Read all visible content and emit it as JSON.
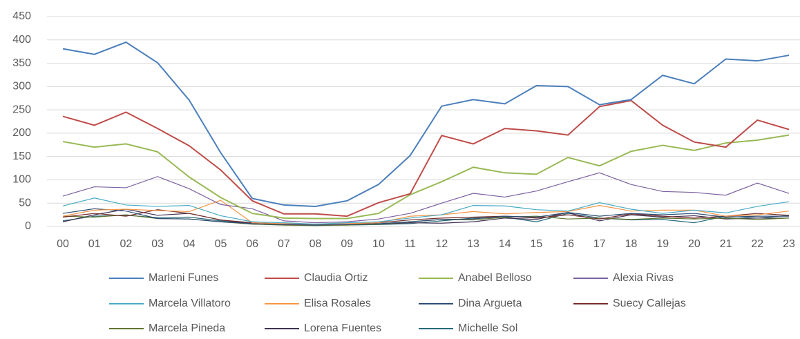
{
  "chart_data": {
    "type": "line",
    "categories": [
      "00",
      "01",
      "02",
      "03",
      "04",
      "05",
      "06",
      "07",
      "08",
      "09",
      "10",
      "11",
      "12",
      "13",
      "14",
      "15",
      "16",
      "17",
      "18",
      "19",
      "20",
      "21",
      "22",
      "23"
    ],
    "ylim": [
      0,
      450
    ],
    "yticks": [
      0,
      50,
      100,
      150,
      200,
      250,
      300,
      350,
      400,
      450
    ],
    "grid": true,
    "legend": "bottom",
    "series": [
      {
        "name": "Marleni Funes",
        "color": "#4a7ebb",
        "values": [
          381,
          369,
          395,
          351,
          271,
          158,
          60,
          46,
          43,
          55,
          90,
          152,
          258,
          272,
          263,
          302,
          300,
          261,
          272,
          324,
          306,
          359,
          355,
          367
        ]
      },
      {
        "name": "Claudia Ortiz",
        "color": "#be4b48",
        "values": [
          236,
          217,
          245,
          210,
          173,
          121,
          55,
          27,
          27,
          22,
          51,
          70,
          195,
          177,
          210,
          205,
          196,
          257,
          270,
          217,
          181,
          170,
          228,
          208
        ]
      },
      {
        "name": "Anabel Belloso",
        "color": "#98b954",
        "values": [
          182,
          170,
          177,
          160,
          106,
          62,
          28,
          18,
          17,
          17,
          28,
          68,
          96,
          127,
          115,
          112,
          148,
          130,
          161,
          174,
          163,
          179,
          185,
          196
        ]
      },
      {
        "name": "Alexia Rivas",
        "color": "#7d60a0",
        "values": [
          65,
          85,
          83,
          107,
          81,
          47,
          38,
          12,
          8,
          10,
          16,
          28,
          50,
          71,
          63,
          76,
          96,
          115,
          90,
          75,
          73,
          67,
          93,
          71
        ]
      },
      {
        "name": "Marcela Villatoro",
        "color": "#46aac5",
        "values": [
          44,
          61,
          46,
          43,
          45,
          23,
          10,
          8,
          5,
          8,
          10,
          18,
          25,
          45,
          44,
          36,
          33,
          51,
          37,
          28,
          35,
          29,
          43,
          53
        ]
      },
      {
        "name": "Elisa Rosales",
        "color": "#f79646",
        "values": [
          22,
          35,
          37,
          34,
          32,
          56,
          8,
          6,
          5,
          6,
          8,
          22,
          25,
          32,
          27,
          30,
          32,
          45,
          33,
          35,
          35,
          22,
          25,
          33
        ]
      },
      {
        "name": "Dina Argueta",
        "color": "#2c4d75",
        "values": [
          28,
          38,
          33,
          17,
          16,
          10,
          6,
          4,
          3,
          4,
          6,
          10,
          15,
          16,
          22,
          20,
          30,
          22,
          28,
          25,
          28,
          20,
          22,
          22
        ]
      },
      {
        "name": "Suecy Callejas",
        "color": "#772c2a",
        "values": [
          20,
          28,
          22,
          36,
          28,
          14,
          8,
          5,
          4,
          4,
          8,
          14,
          18,
          20,
          22,
          18,
          25,
          16,
          27,
          22,
          18,
          22,
          28,
          24
        ]
      },
      {
        "name": "Marcela Pineda",
        "color": "#5f7530",
        "values": [
          22,
          20,
          25,
          17,
          16,
          10,
          5,
          3,
          2,
          3,
          5,
          10,
          15,
          14,
          20,
          22,
          16,
          18,
          15,
          18,
          16,
          18,
          15,
          18
        ]
      },
      {
        "name": "Lorena Fuentes",
        "color": "#403152",
        "values": [
          10,
          25,
          37,
          24,
          28,
          14,
          6,
          3,
          3,
          4,
          5,
          8,
          7,
          10,
          18,
          15,
          30,
          12,
          25,
          20,
          23,
          16,
          18,
          18
        ]
      },
      {
        "name": "Michelle Sol",
        "color": "#276a7c",
        "values": [
          12,
          22,
          24,
          19,
          20,
          12,
          5,
          4,
          3,
          3,
          4,
          6,
          12,
          18,
          20,
          10,
          28,
          18,
          14,
          15,
          8,
          22,
          18,
          24
        ]
      }
    ]
  }
}
